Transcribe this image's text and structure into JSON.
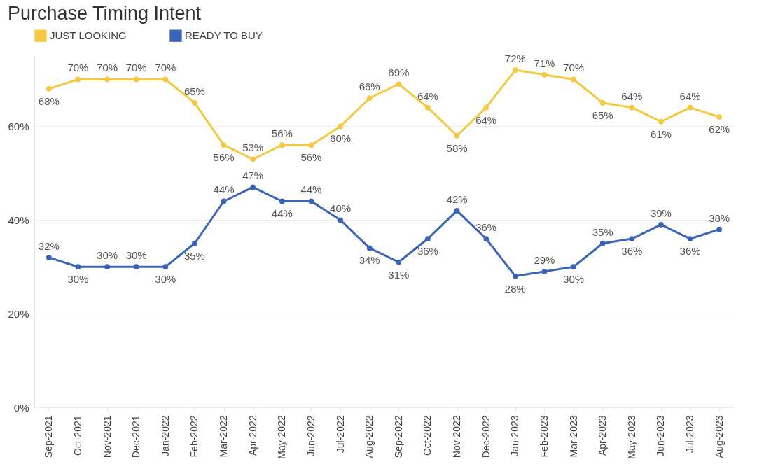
{
  "chart_data": {
    "type": "line",
    "title": "Purchase Timing Intent",
    "categories": [
      "Sep-2021",
      "Oct-2021",
      "Nov-2021",
      "Dec-2021",
      "Jan-2022",
      "Feb-2022",
      "Mar-2022",
      "Apr-2022",
      "May-2022",
      "Jun-2022",
      "Jul-2022",
      "Aug-2022",
      "Sep-2022",
      "Oct-2022",
      "Nov-2022",
      "Dec-2022",
      "Jan-2023",
      "Feb-2023",
      "Mar-2023",
      "Apr-2023",
      "May-2023",
      "Jun-2023",
      "Jul-2023",
      "Aug-2023"
    ],
    "series": [
      {
        "name": "JUST LOOKING",
        "color": "#f5c842",
        "values": [
          68,
          70,
          70,
          70,
          70,
          65,
          56,
          53,
          56,
          56,
          60,
          66,
          69,
          64,
          58,
          64,
          72,
          71,
          70,
          65,
          64,
          61,
          64,
          62
        ],
        "value_labels": [
          "68%",
          "70%",
          "70%",
          "70%",
          "70%",
          "65%",
          "56%",
          "53%",
          "56%",
          "56%",
          "60%",
          "66%",
          "69%",
          "64%",
          "58%",
          "64%",
          "72%",
          "71%",
          "70%",
          "65%",
          "64%",
          "61%",
          "64%",
          "62%"
        ]
      },
      {
        "name": "READY TO BUY",
        "color": "#3a64b8",
        "values": [
          32,
          30,
          30,
          30,
          30,
          35,
          44,
          47,
          44,
          44,
          40,
          34,
          31,
          36,
          42,
          36,
          28,
          29,
          30,
          35,
          36,
          39,
          36,
          38
        ],
        "value_labels": [
          "32%",
          "30%",
          "30%",
          "30%",
          "30%",
          "35%",
          "44%",
          "47%",
          "44%",
          "44%",
          "40%",
          "34%",
          "31%",
          "36%",
          "42%",
          "36%",
          "28%",
          "29%",
          "30%",
          "35%",
          "36%",
          "39%",
          "36%",
          "38%"
        ]
      }
    ],
    "ylim": [
      0,
      75
    ],
    "yticks": [
      {
        "value": 0,
        "label": "0%"
      },
      {
        "value": 20,
        "label": "20%"
      },
      {
        "value": 40,
        "label": "40%"
      },
      {
        "value": 60,
        "label": "60%"
      }
    ],
    "grid": "y",
    "legend": "top left",
    "marker": "circle",
    "line_style": "solid"
  }
}
